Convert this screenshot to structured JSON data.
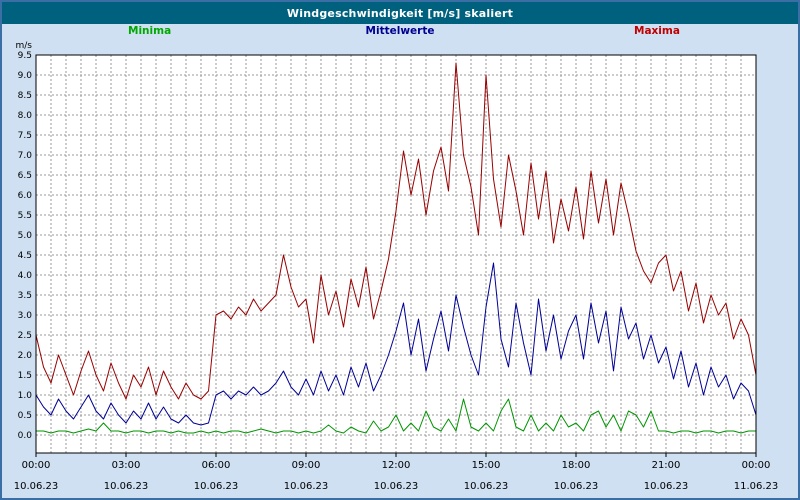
{
  "window": {
    "title": "Windgeschwindigkeit [m/s] skaliert"
  },
  "legend": {
    "items": [
      {
        "label": "Minima",
        "color": "#00a800"
      },
      {
        "label": "Mittelwerte",
        "color": "#000090"
      },
      {
        "label": "Maxima",
        "color": "#c00000"
      }
    ]
  },
  "chart_data": {
    "type": "line",
    "title": "Windgeschwindigkeit [m/s] skaliert",
    "ylabel": "m/s",
    "ylim": [
      0,
      9.5
    ],
    "ytick_step": 0.5,
    "x_range_hours": [
      0,
      24
    ],
    "x_minor_grid_hours": 0.5,
    "grid": "dashed",
    "legend_position": "top",
    "x_ticks": [
      {
        "hour": 0,
        "time": "00:00",
        "date": "10.06.23"
      },
      {
        "hour": 3,
        "time": "03:00",
        "date": "10.06.23"
      },
      {
        "hour": 6,
        "time": "06:00",
        "date": "10.06.23"
      },
      {
        "hour": 9,
        "time": "09:00",
        "date": "10.06.23"
      },
      {
        "hour": 12,
        "time": "12:00",
        "date": "10.06.23"
      },
      {
        "hour": 15,
        "time": "15:00",
        "date": "10.06.23"
      },
      {
        "hour": 18,
        "time": "18:00",
        "date": "10.06.23"
      },
      {
        "hour": 21,
        "time": "21:00",
        "date": "10.06.23"
      },
      {
        "hour": 24,
        "time": "00:00",
        "date": "11.06.23"
      }
    ],
    "series": [
      {
        "name": "Minima",
        "color": "#009600",
        "values": [
          0.1,
          0.1,
          0.05,
          0.1,
          0.1,
          0.05,
          0.1,
          0.15,
          0.1,
          0.3,
          0.1,
          0.1,
          0.05,
          0.1,
          0.1,
          0.05,
          0.1,
          0.1,
          0.05,
          0.1,
          0.05,
          0.05,
          0.1,
          0.05,
          0.1,
          0.05,
          0.1,
          0.1,
          0.05,
          0.1,
          0.15,
          0.1,
          0.05,
          0.1,
          0.1,
          0.05,
          0.1,
          0.05,
          0.1,
          0.25,
          0.1,
          0.05,
          0.2,
          0.1,
          0.05,
          0.35,
          0.1,
          0.2,
          0.5,
          0.1,
          0.3,
          0.1,
          0.6,
          0.2,
          0.1,
          0.4,
          0.1,
          0.9,
          0.2,
          0.1,
          0.3,
          0.1,
          0.6,
          0.9,
          0.2,
          0.1,
          0.5,
          0.1,
          0.3,
          0.1,
          0.5,
          0.2,
          0.3,
          0.1,
          0.5,
          0.6,
          0.2,
          0.5,
          0.1,
          0.6,
          0.5,
          0.2,
          0.6,
          0.1,
          0.1,
          0.05,
          0.1,
          0.1,
          0.05,
          0.1,
          0.1,
          0.05,
          0.1,
          0.1,
          0.05,
          0.1,
          0.1
        ]
      },
      {
        "name": "Mittelwerte",
        "color": "#000096",
        "values": [
          1.0,
          0.7,
          0.5,
          0.9,
          0.6,
          0.4,
          0.7,
          1.0,
          0.6,
          0.4,
          0.8,
          0.5,
          0.3,
          0.6,
          0.4,
          0.8,
          0.4,
          0.7,
          0.4,
          0.3,
          0.5,
          0.3,
          0.25,
          0.3,
          1.0,
          1.1,
          0.9,
          1.1,
          1.0,
          1.2,
          1.0,
          1.1,
          1.3,
          1.6,
          1.2,
          1.0,
          1.4,
          1.0,
          1.6,
          1.1,
          1.5,
          1.0,
          1.7,
          1.2,
          1.8,
          1.1,
          1.5,
          2.0,
          2.6,
          3.3,
          2.0,
          2.9,
          1.6,
          2.4,
          3.1,
          2.1,
          3.5,
          2.7,
          2.0,
          1.5,
          3.2,
          4.3,
          2.4,
          1.7,
          3.3,
          2.3,
          1.5,
          3.4,
          2.1,
          3.0,
          1.9,
          2.6,
          3.0,
          1.9,
          3.3,
          2.3,
          3.1,
          1.6,
          3.2,
          2.4,
          2.8,
          1.9,
          2.5,
          1.8,
          2.2,
          1.4,
          2.1,
          1.2,
          1.8,
          1.0,
          1.7,
          1.2,
          1.5,
          0.9,
          1.3,
          1.1,
          0.5
        ]
      },
      {
        "name": "Maxima",
        "color": "#990000",
        "values": [
          2.5,
          1.7,
          1.3,
          2.0,
          1.5,
          1.0,
          1.6,
          2.1,
          1.5,
          1.1,
          1.8,
          1.3,
          0.9,
          1.5,
          1.2,
          1.7,
          1.0,
          1.6,
          1.2,
          0.9,
          1.3,
          1.0,
          0.9,
          1.1,
          3.0,
          3.1,
          2.9,
          3.2,
          3.0,
          3.4,
          3.1,
          3.3,
          3.5,
          4.5,
          3.7,
          3.2,
          3.4,
          2.3,
          4.0,
          3.0,
          3.6,
          2.7,
          3.9,
          3.2,
          4.2,
          2.9,
          3.6,
          4.4,
          5.6,
          7.1,
          6.0,
          6.9,
          5.5,
          6.6,
          7.2,
          6.1,
          9.3,
          7.0,
          6.2,
          5.0,
          9.0,
          6.4,
          5.2,
          7.0,
          6.1,
          5.0,
          6.8,
          5.4,
          6.6,
          4.8,
          5.9,
          5.1,
          6.2,
          4.9,
          6.6,
          5.3,
          6.4,
          5.0,
          6.3,
          5.5,
          4.6,
          4.1,
          3.8,
          4.3,
          4.5,
          3.6,
          4.1,
          3.1,
          3.8,
          2.8,
          3.5,
          3.0,
          3.3,
          2.4,
          2.9,
          2.5,
          1.5
        ]
      }
    ]
  }
}
